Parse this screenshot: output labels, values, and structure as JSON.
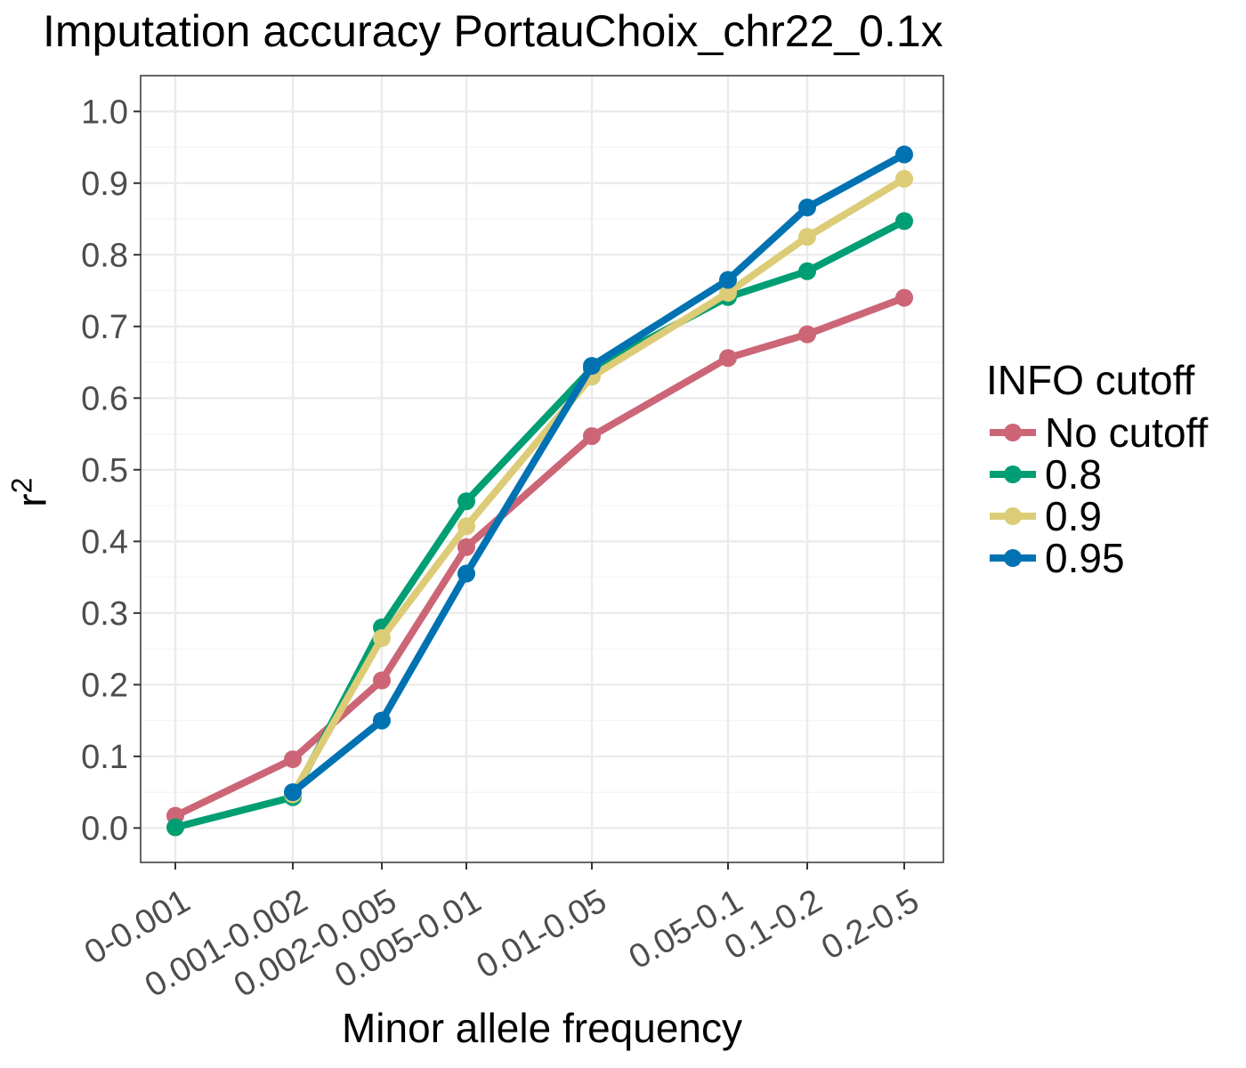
{
  "chart_data": {
    "type": "line",
    "title": "Imputation accuracy PortauChoix_chr22_0.1x",
    "xlabel": "Minor allele frequency",
    "ylabel": "r",
    "ylabel_superscript": "2",
    "categories": [
      "0-0.001",
      "0.001-0.002",
      "0.002-0.005",
      "0.005-0.01",
      "0.01-0.05",
      "0.05-0.1",
      "0.1-0.2",
      "0.2-0.5"
    ],
    "yticks": [
      "0.0",
      "0.1",
      "0.2",
      "0.3",
      "0.4",
      "0.5",
      "0.6",
      "0.7",
      "0.8",
      "0.9",
      "1.0"
    ],
    "ylim": [
      -0.048,
      1.05
    ],
    "grid": true,
    "legend_title": "INFO cutoff",
    "legend_position": "right",
    "series": [
      {
        "name": "No cutoff",
        "color": "#CC6677",
        "values": [
          0.017,
          0.096,
          0.206,
          0.392,
          0.547,
          0.656,
          0.689,
          0.74
        ]
      },
      {
        "name": "0.8",
        "color": "#009E73",
        "values": [
          0.001,
          0.043,
          0.28,
          0.456,
          0.641,
          0.741,
          0.777,
          0.847
        ]
      },
      {
        "name": "0.9",
        "color": "#DDCC77",
        "values": [
          null,
          0.047,
          0.265,
          0.421,
          0.63,
          0.747,
          0.825,
          0.906
        ]
      },
      {
        "name": "0.95",
        "color": "#0072B2",
        "values": [
          null,
          0.05,
          0.15,
          0.355,
          0.645,
          0.765,
          0.866,
          0.94
        ]
      }
    ]
  }
}
